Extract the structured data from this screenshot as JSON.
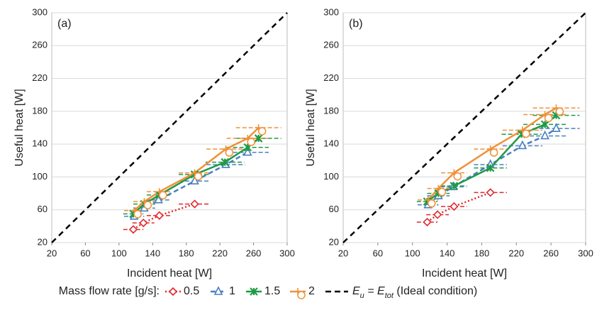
{
  "chart_data": [
    {
      "type": "scatter",
      "panel": "(a)",
      "xlabel": "Incident heat [W]",
      "ylabel": "Useful heat [W]",
      "xlim": [
        20,
        300
      ],
      "ylim": [
        20,
        300
      ],
      "xticks": [
        20,
        60,
        100,
        140,
        180,
        220,
        260,
        300
      ],
      "yticks": [
        20,
        60,
        100,
        140,
        180,
        220,
        260,
        300
      ],
      "grid": true,
      "ideal": {
        "x": [
          20,
          300
        ],
        "y": [
          20,
          300
        ],
        "color": "#000000"
      },
      "series": [
        {
          "name": "0.5",
          "color": "#e0282e",
          "marker": "diamond",
          "line": "dotted",
          "x": [
            117,
            129,
            148,
            190
          ],
          "values": [
            36,
            44,
            53,
            67
          ],
          "xerr": [
            12,
            13,
            15,
            19
          ]
        },
        {
          "name": "1",
          "color": "#4a7fc1",
          "marker": "triangle",
          "line": "dashed",
          "x": [
            118,
            130,
            147,
            190,
            227,
            253
          ],
          "values": [
            52,
            62,
            72,
            95,
            115,
            130
          ],
          "xerr": [
            12,
            13,
            15,
            19,
            23,
            25
          ]
        },
        {
          "name": "1.5",
          "color": "#1e9a46",
          "marker": "x",
          "line": "solid",
          "x": [
            117,
            130,
            148,
            190,
            226,
            253,
            266
          ],
          "values": [
            55,
            67,
            78,
            103,
            118,
            136,
            147
          ],
          "xerr": [
            12,
            13,
            15,
            19,
            23,
            25,
            27
          ]
        },
        {
          "name": "2",
          "color": "#f0913a",
          "marker": "circle",
          "line": "solid",
          "x": [
            118,
            130,
            148,
            190,
            227,
            253,
            266
          ],
          "values": [
            59,
            70,
            82,
            105,
            134,
            147,
            160
          ],
          "xerr": [
            12,
            13,
            15,
            19,
            23,
            25,
            27
          ]
        }
      ]
    },
    {
      "type": "scatter",
      "panel": "(b)",
      "xlabel": "Incident heat [W]",
      "ylabel": "Useful heat [W]",
      "xlim": [
        20,
        300
      ],
      "ylim": [
        20,
        300
      ],
      "xticks": [
        20,
        60,
        100,
        140,
        180,
        220,
        260,
        300
      ],
      "yticks": [
        20,
        60,
        100,
        140,
        180,
        220,
        260,
        300
      ],
      "grid": true,
      "ideal": {
        "x": [
          20,
          300
        ],
        "y": [
          20,
          300
        ],
        "color": "#000000"
      },
      "series": [
        {
          "name": "0.5",
          "color": "#e0282e",
          "marker": "diamond",
          "line": "dotted",
          "x": [
            117,
            129,
            148,
            190
          ],
          "values": [
            45,
            54,
            64,
            81
          ],
          "xerr": [
            12,
            13,
            15,
            19
          ]
        },
        {
          "name": "1",
          "color": "#4a7fc1",
          "marker": "triangle",
          "line": "dashed",
          "x": [
            118,
            130,
            147,
            190,
            227,
            253,
            266
          ],
          "values": [
            66,
            77,
            88,
            115,
            138,
            150,
            159
          ],
          "xerr": [
            12,
            13,
            15,
            19,
            23,
            25,
            27
          ]
        },
        {
          "name": "1.5",
          "color": "#1e9a46",
          "marker": "x",
          "line": "solid",
          "x": [
            117,
            130,
            148,
            190,
            226,
            253,
            266
          ],
          "values": [
            70,
            80,
            89,
            111,
            152,
            164,
            175
          ],
          "xerr": [
            12,
            13,
            15,
            19,
            23,
            25,
            27
          ]
        },
        {
          "name": "2",
          "color": "#f0913a",
          "marker": "circle",
          "line": "solid",
          "x": [
            118,
            130,
            148,
            190,
            227,
            253,
            266
          ],
          "values": [
            72,
            86,
            105,
            134,
            157,
            176,
            184
          ],
          "xerr": [
            12,
            13,
            15,
            19,
            23,
            25,
            27
          ]
        }
      ]
    }
  ],
  "legend": {
    "title": "Mass flow rate [g/s]:",
    "ideal_label": [
      "E",
      "u",
      " = E",
      "tot",
      " (Ideal condition)"
    ]
  }
}
